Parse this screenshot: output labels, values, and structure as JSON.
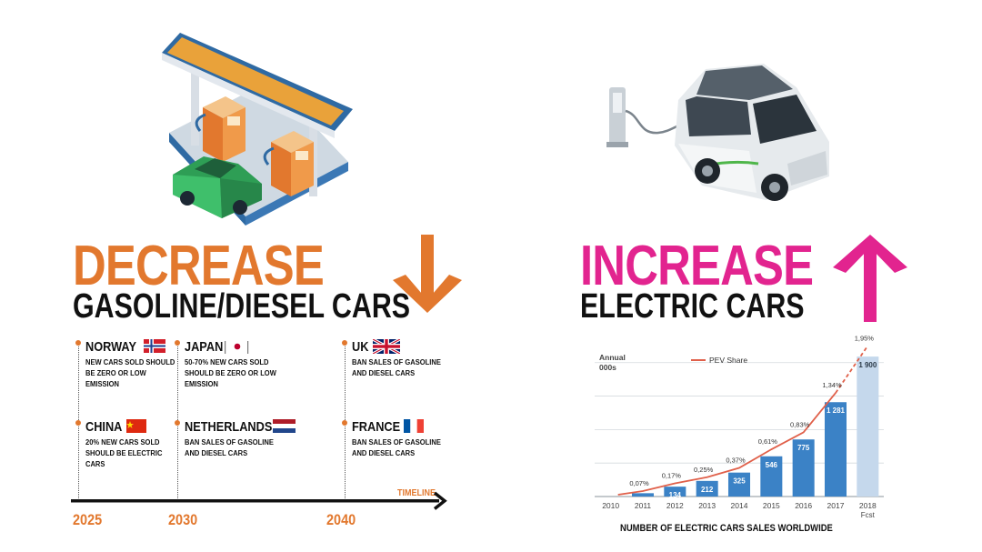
{
  "left": {
    "headline": "DECREASE",
    "subheadline": "GASOLINE/DIESEL CARS",
    "timeline_label": "TIMELINE",
    "years": [
      "2025",
      "2030",
      "2040"
    ],
    "countries": [
      {
        "name": "NORWAY",
        "policy": "NEW CARS SOLD SHOULD BE ZERO OR LOW EMISSION"
      },
      {
        "name": "CHINA",
        "policy": "20% NEW CARS SOLD SHOULD BE ELECTRIC CARS"
      },
      {
        "name": "JAPAN",
        "policy": "50-70% NEW CARS SOLD SHOULD BE ZERO OR LOW EMISSION"
      },
      {
        "name": "NETHERLANDS",
        "policy": "BAN SALES OF GASOLINE AND DIESEL CARS"
      },
      {
        "name": "UK",
        "policy": "BAN SALES OF GASOLINE AND DIESEL CARS"
      },
      {
        "name": "FRANCE",
        "policy": "BAN SALES OF GASOLINE AND DIESEL CARS"
      }
    ],
    "japan_separator": "|",
    "accent_color": "#e2782e",
    "icons": [
      "gas-station-icon",
      "green-car-icon",
      "down-arrow-icon"
    ]
  },
  "right": {
    "headline": "INCREASE",
    "subheadline": "ELECTRIC CARS",
    "accent_color": "#e2248f",
    "icons": [
      "charging-station-icon",
      "electric-car-icon",
      "up-arrow-icon"
    ]
  },
  "chart_data": {
    "type": "bar",
    "title": "NUMBER OF ELECTRIC CARS SALES WORLDWIDE",
    "ylabel_line1": "Annual",
    "ylabel_line2": "000s",
    "categories": [
      "2010",
      "2011",
      "2012",
      "2013",
      "2014",
      "2015",
      "2016",
      "2017",
      "2018"
    ],
    "category_sublabels": [
      "",
      "",
      "",
      "",
      "",
      "",
      "",
      "",
      "Fcst"
    ],
    "values": [
      null,
      45,
      134,
      212,
      325,
      546,
      775,
      1281,
      1900
    ],
    "value_labels": [
      "",
      "",
      "134",
      "212",
      "325",
      "546",
      "775",
      "1 281",
      "1 900"
    ],
    "ylim": [
      0,
      2000
    ],
    "line_series": {
      "name": "PEV Share",
      "values": [
        null,
        0.07,
        0.17,
        0.25,
        0.37,
        0.61,
        0.83,
        1.34,
        1.95
      ],
      "labels": [
        "",
        "0,07%",
        "0,17%",
        "0,25%",
        "0,37%",
        "0,61%",
        "0,83%",
        "1,34%",
        "1,95%"
      ],
      "ylim": [
        0,
        2.0
      ],
      "color": "#e0604a"
    },
    "bar_color": "#3b82c6",
    "forecast_bar_color": "#c5d8ec",
    "grid": true
  }
}
